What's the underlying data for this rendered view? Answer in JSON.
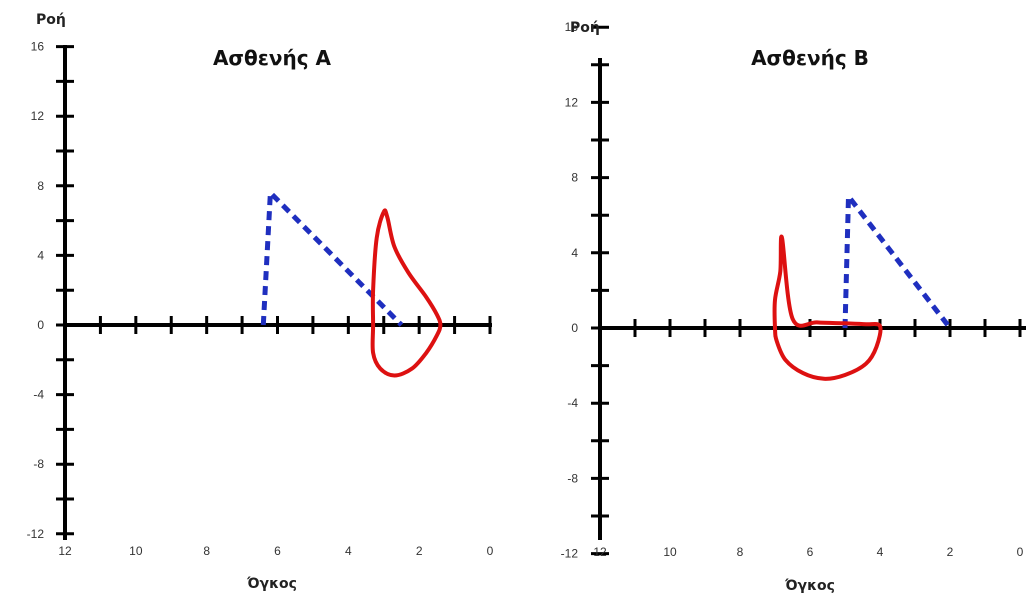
{
  "colors": {
    "axis": "#000000",
    "normal_loop": "#1f2fbf",
    "patient_loop": "#dd1111"
  },
  "chart_data": [
    {
      "type": "line",
      "title": "Ασθενής Α",
      "xlabel": "Όγκος",
      "ylabel": "Ροή",
      "xlim": [
        12,
        0
      ],
      "ylim": [
        -12,
        16
      ],
      "x_ticks": [
        12,
        10,
        8,
        6,
        4,
        2,
        0
      ],
      "y_ticks": [
        16,
        12,
        8,
        4,
        0,
        -4,
        -8,
        -12
      ],
      "grid": false,
      "series": [
        {
          "style": "dashed",
          "color": "#1f2fbf",
          "x": [
            6.4,
            6.2,
            2.5
          ],
          "y": [
            0,
            7.6,
            0
          ]
        },
        {
          "style": "solid",
          "color": "#dd1111",
          "x": [
            3.0,
            2.9,
            2.7,
            2.3,
            1.8,
            1.5,
            1.4,
            1.5,
            1.8,
            2.2,
            2.7,
            3.1,
            3.3,
            3.3,
            3.3,
            3.2,
            3.0
          ],
          "y": [
            6.5,
            6.2,
            4.5,
            3.0,
            1.6,
            0.6,
            0,
            -0.6,
            -1.6,
            -2.5,
            -2.9,
            -2.5,
            -1.6,
            0,
            2.0,
            5.0,
            6.5
          ]
        }
      ]
    },
    {
      "type": "line",
      "title": "Ασθενής Β",
      "xlabel": "Όγκος",
      "ylabel": "Ροή",
      "xlim": [
        12,
        0
      ],
      "ylim": [
        -12,
        16
      ],
      "x_ticks": [
        12,
        10,
        8,
        6,
        4,
        2,
        0
      ],
      "y_ticks": [
        16,
        12,
        8,
        4,
        0,
        -4,
        -8,
        -12
      ],
      "grid": false,
      "series": [
        {
          "style": "dashed",
          "color": "#1f2fbf",
          "x": [
            5.0,
            4.9,
            2.0
          ],
          "y": [
            0,
            7.0,
            0
          ]
        },
        {
          "style": "solid",
          "color": "#dd1111",
          "x": [
            6.8,
            6.85,
            7.0,
            7.0,
            6.95,
            6.7,
            6.2,
            5.6,
            5.0,
            4.4,
            4.1,
            4.0,
            4.4,
            5.0,
            5.8,
            6.5,
            6.8
          ],
          "y": [
            4.8,
            3.0,
            1.5,
            0,
            -0.7,
            -1.7,
            -2.4,
            -2.7,
            -2.5,
            -1.9,
            -1.0,
            0.1,
            0.2,
            0.25,
            0.3,
            0.5,
            4.8
          ]
        }
      ]
    }
  ]
}
